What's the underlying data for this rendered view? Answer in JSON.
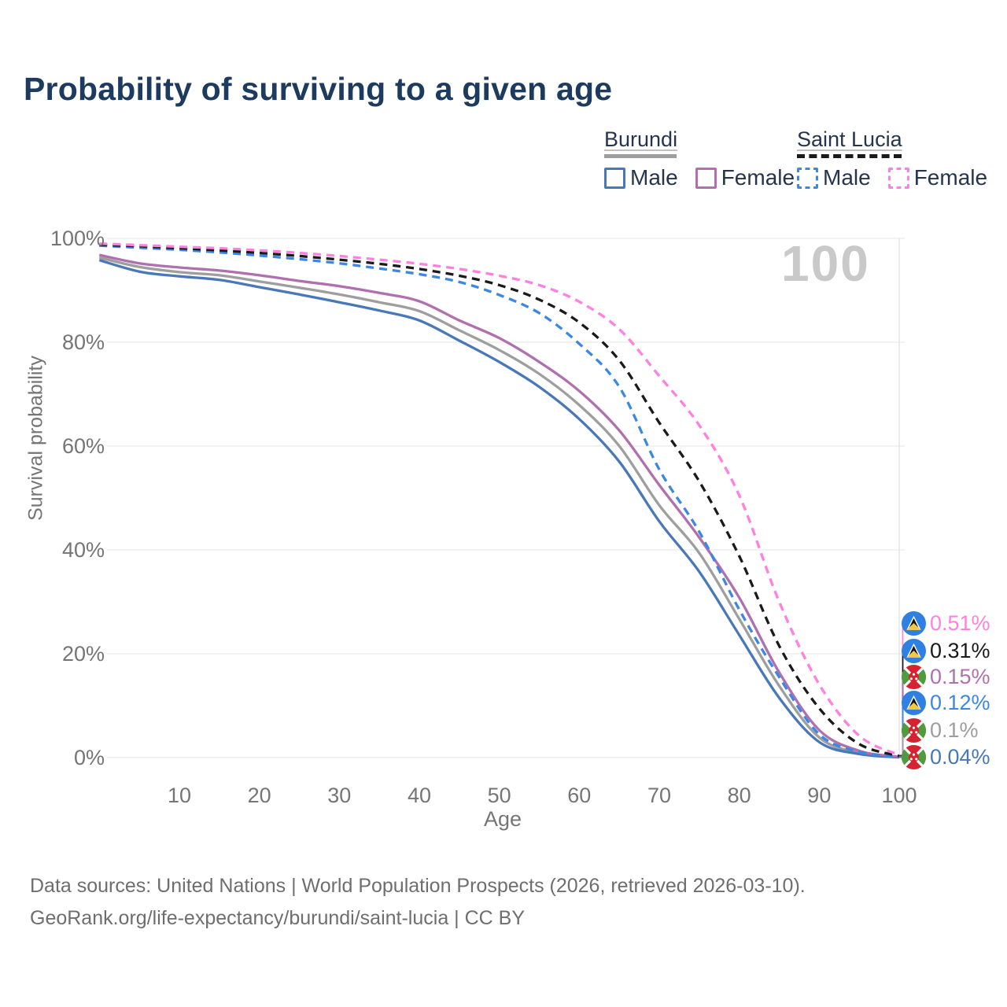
{
  "title": "Probability of surviving to a given age",
  "watermark_label": "100",
  "legend": {
    "groups": [
      {
        "name": "Burundi",
        "line_style": "solid",
        "line_color": "#9e9e9e",
        "items": [
          {
            "label": "Male",
            "color": "#4878b8",
            "dashed": false
          },
          {
            "label": "Female",
            "color": "#b06fae",
            "dashed": false
          }
        ]
      },
      {
        "name": "Saint Lucia",
        "line_style": "dashed",
        "line_color": "#1a1a1a",
        "items": [
          {
            "label": "Male",
            "color": "#3c87e5",
            "dashed": true
          },
          {
            "label": "Female",
            "color": "#ff80e0",
            "dashed": true
          }
        ]
      }
    ]
  },
  "chart_data": {
    "type": "line",
    "title": "Probability of surviving to a given age",
    "xlabel": "Age",
    "ylabel": "Survival probability",
    "xlim": [
      0,
      100
    ],
    "ylim": [
      0,
      100
    ],
    "grid": "horizontal",
    "legend_position": "top-right",
    "x_ticks": [
      10,
      20,
      30,
      40,
      50,
      60,
      70,
      80,
      90,
      100
    ],
    "y_ticks": [
      "100%",
      "80%",
      "60%",
      "40%",
      "20%",
      "0%"
    ],
    "x": [
      0,
      5,
      10,
      15,
      20,
      25,
      30,
      35,
      40,
      45,
      50,
      55,
      60,
      65,
      70,
      75,
      80,
      85,
      90,
      95,
      100
    ],
    "series": [
      {
        "name": "Burundi",
        "color": "#9e9e9e",
        "dashed": false,
        "end_label": "0.1%",
        "values": [
          96.3,
          94.5,
          93.5,
          92.9,
          91.7,
          90.5,
          89.2,
          87.7,
          86.0,
          82.3,
          78.5,
          73.9,
          67.9,
          60.0,
          48.6,
          39.4,
          26.7,
          13.8,
          3.9,
          0.9,
          0.1
        ]
      },
      {
        "name": "Burundi Male",
        "color": "#4878b8",
        "dashed": false,
        "end_label": "0.04%",
        "values": [
          95.8,
          93.6,
          92.7,
          92.0,
          90.6,
          89.2,
          87.7,
          86.1,
          84.2,
          80.3,
          76.2,
          71.4,
          65.2,
          57.0,
          45.5,
          35.8,
          23.6,
          11.5,
          3.0,
          0.7,
          0.04
        ]
      },
      {
        "name": "Burundi Female",
        "color": "#b06fae",
        "dashed": false,
        "end_label": "0.15%",
        "values": [
          96.8,
          95.2,
          94.4,
          93.8,
          92.9,
          91.8,
          90.8,
          89.5,
          87.9,
          84.2,
          80.8,
          76.2,
          70.6,
          63.0,
          52.5,
          42.4,
          30.8,
          16.4,
          5.3,
          1.3,
          0.15
        ]
      },
      {
        "name": "Saint Lucia Male",
        "color": "#3c87e5",
        "dashed": true,
        "end_label": "0.12%",
        "values": [
          98.6,
          98.2,
          97.8,
          97.3,
          96.7,
          96.0,
          95.2,
          94.2,
          93.1,
          91.6,
          89.1,
          85.6,
          79.7,
          71.4,
          55.5,
          43.5,
          28.5,
          15.5,
          4.5,
          1.1,
          0.12
        ]
      },
      {
        "name": "Saint Lucia",
        "color": "#1a1a1a",
        "dashed": true,
        "end_label": "0.31%",
        "values": [
          98.8,
          98.5,
          98.1,
          97.7,
          97.2,
          96.6,
          95.9,
          95.1,
          94.1,
          92.8,
          91.0,
          88.2,
          83.8,
          76.5,
          64.5,
          53.2,
          38.8,
          21.5,
          9.5,
          2.6,
          0.31
        ]
      },
      {
        "name": "Saint Lucia Female",
        "color": "#ff80e0",
        "dashed": true,
        "end_label": "0.51%",
        "values": [
          99.0,
          98.7,
          98.4,
          98.1,
          97.7,
          97.2,
          96.6,
          95.9,
          95.1,
          94.1,
          92.8,
          91.0,
          87.8,
          82.5,
          73.5,
          64.0,
          50.5,
          30.0,
          14.1,
          4.2,
          0.51
        ]
      }
    ],
    "end_labels": [
      {
        "value": "0.51%",
        "color": "#ff80e0",
        "flag": "saint-lucia",
        "series": "Saint Lucia Female"
      },
      {
        "value": "0.31%",
        "color": "#1a1a1a",
        "flag": "saint-lucia",
        "series": "Saint Lucia"
      },
      {
        "value": "0.15%",
        "color": "#b06fae",
        "flag": "burundi",
        "series": "Burundi Female"
      },
      {
        "value": "0.12%",
        "color": "#3c87e5",
        "flag": "saint-lucia",
        "series": "Saint Lucia Male"
      },
      {
        "value": "0.1%",
        "color": "#9e9e9e",
        "flag": "burundi",
        "series": "Burundi"
      },
      {
        "value": "0.04%",
        "color": "#4878b8",
        "flag": "burundi",
        "series": "Burundi Male"
      }
    ]
  },
  "footer": {
    "line1": "Data sources: United Nations | World Population Prospects (2026, retrieved 2026-03-10).",
    "line2": "GeoRank.org/life-expectancy/burundi/saint-lucia | CC BY"
  }
}
